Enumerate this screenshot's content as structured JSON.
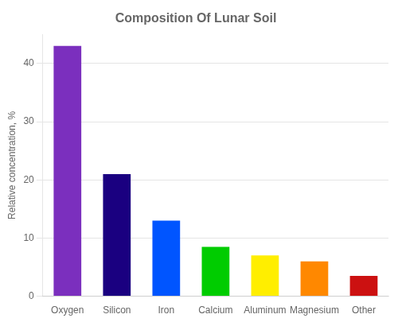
{
  "chart_data": {
    "type": "bar",
    "title": "Composition Of Lunar Soil",
    "ylabel": "Relative concentration, %",
    "categories": [
      "Oxygen",
      "Silicon",
      "Iron",
      "Calcium",
      "Aluminum",
      "Magnesium",
      "Other"
    ],
    "values": [
      43,
      21,
      13,
      8.5,
      7.0,
      6.0,
      3.5
    ],
    "colors": [
      "#7B2FBE",
      "#1A0080",
      "#0055FF",
      "#00CC00",
      "#FFEE00",
      "#FF8800",
      "#CC1111"
    ],
    "ylim": [
      0,
      45
    ],
    "yticks": [
      0,
      10,
      20,
      30,
      40
    ],
    "grid": true
  }
}
